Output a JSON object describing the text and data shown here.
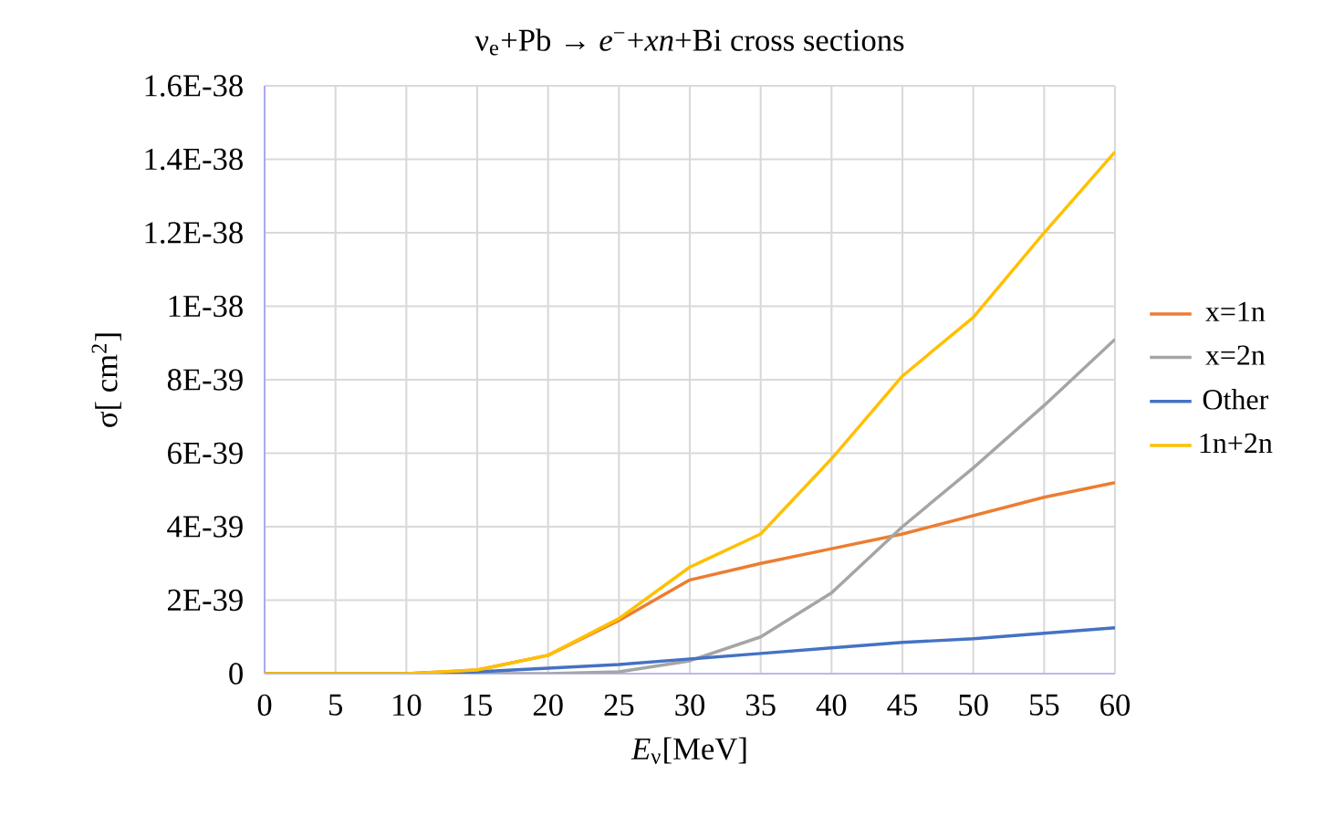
{
  "chart_data": {
    "type": "line",
    "title": "ν$_{e}$+Pb → *e*$^{−}$+*xn*+Bi  cross sections",
    "xlabel": "*E*$_{ν}$[MeV]",
    "ylabel": "σ[ cm$^{2}$]",
    "x": [
      0,
      5,
      10,
      15,
      20,
      25,
      30,
      35,
      40,
      45,
      50,
      55,
      60
    ],
    "series": [
      {
        "name": "x=1n",
        "color": "#ed7d31",
        "values": [
          0,
          0,
          0,
          1e-40,
          5e-40,
          1.45e-39,
          2.55e-39,
          3e-39,
          3.4e-39,
          3.8e-39,
          4.3e-39,
          4.8e-39,
          5.2e-39
        ]
      },
      {
        "name": "x=2n",
        "color": "#a5a5a5",
        "values": [
          0,
          0,
          0,
          0,
          0,
          5e-41,
          3.5e-40,
          1e-39,
          2.2e-39,
          4e-39,
          5.6e-39,
          7.3e-39,
          9.1e-39
        ]
      },
      {
        "name": "Other",
        "color": "#4472c4",
        "values": [
          0,
          0,
          0,
          5e-41,
          1.5e-40,
          2.5e-40,
          4e-40,
          5.5e-40,
          7e-40,
          8.5e-40,
          9.5e-40,
          1.1e-39,
          1.25e-39
        ]
      },
      {
        "name": "1n+2n",
        "color": "#ffc000",
        "values": [
          0,
          0,
          0,
          1e-40,
          5e-40,
          1.5e-39,
          2.9e-39,
          3.8e-39,
          5.85e-39,
          8.1e-39,
          9.7e-39,
          1.2e-38,
          1.42e-38
        ]
      }
    ],
    "xlim": [
      0,
      60
    ],
    "ylim": [
      0,
      1.6e-38
    ],
    "xticks": [
      0,
      5,
      10,
      15,
      20,
      25,
      30,
      35,
      40,
      45,
      50,
      55,
      60
    ],
    "yticks": [
      0,
      {
        "value": 2e-39,
        "label": "2E-39"
      },
      {
        "value": 4e-39,
        "label": "4E-39"
      },
      {
        "value": 6e-39,
        "label": "6E-39"
      },
      {
        "value": 8e-39,
        "label": "8E-39"
      },
      {
        "value": 1e-38,
        "label": "1E-38"
      },
      {
        "value": 1.2e-38,
        "label": "1.2E-38"
      },
      {
        "value": 1.4e-38,
        "label": "1.4E-38"
      },
      {
        "value": 1.6e-38,
        "label": "1.6E-38"
      }
    ],
    "grid": true,
    "legend": "right",
    "marker": "none",
    "line_style": "solid"
  }
}
